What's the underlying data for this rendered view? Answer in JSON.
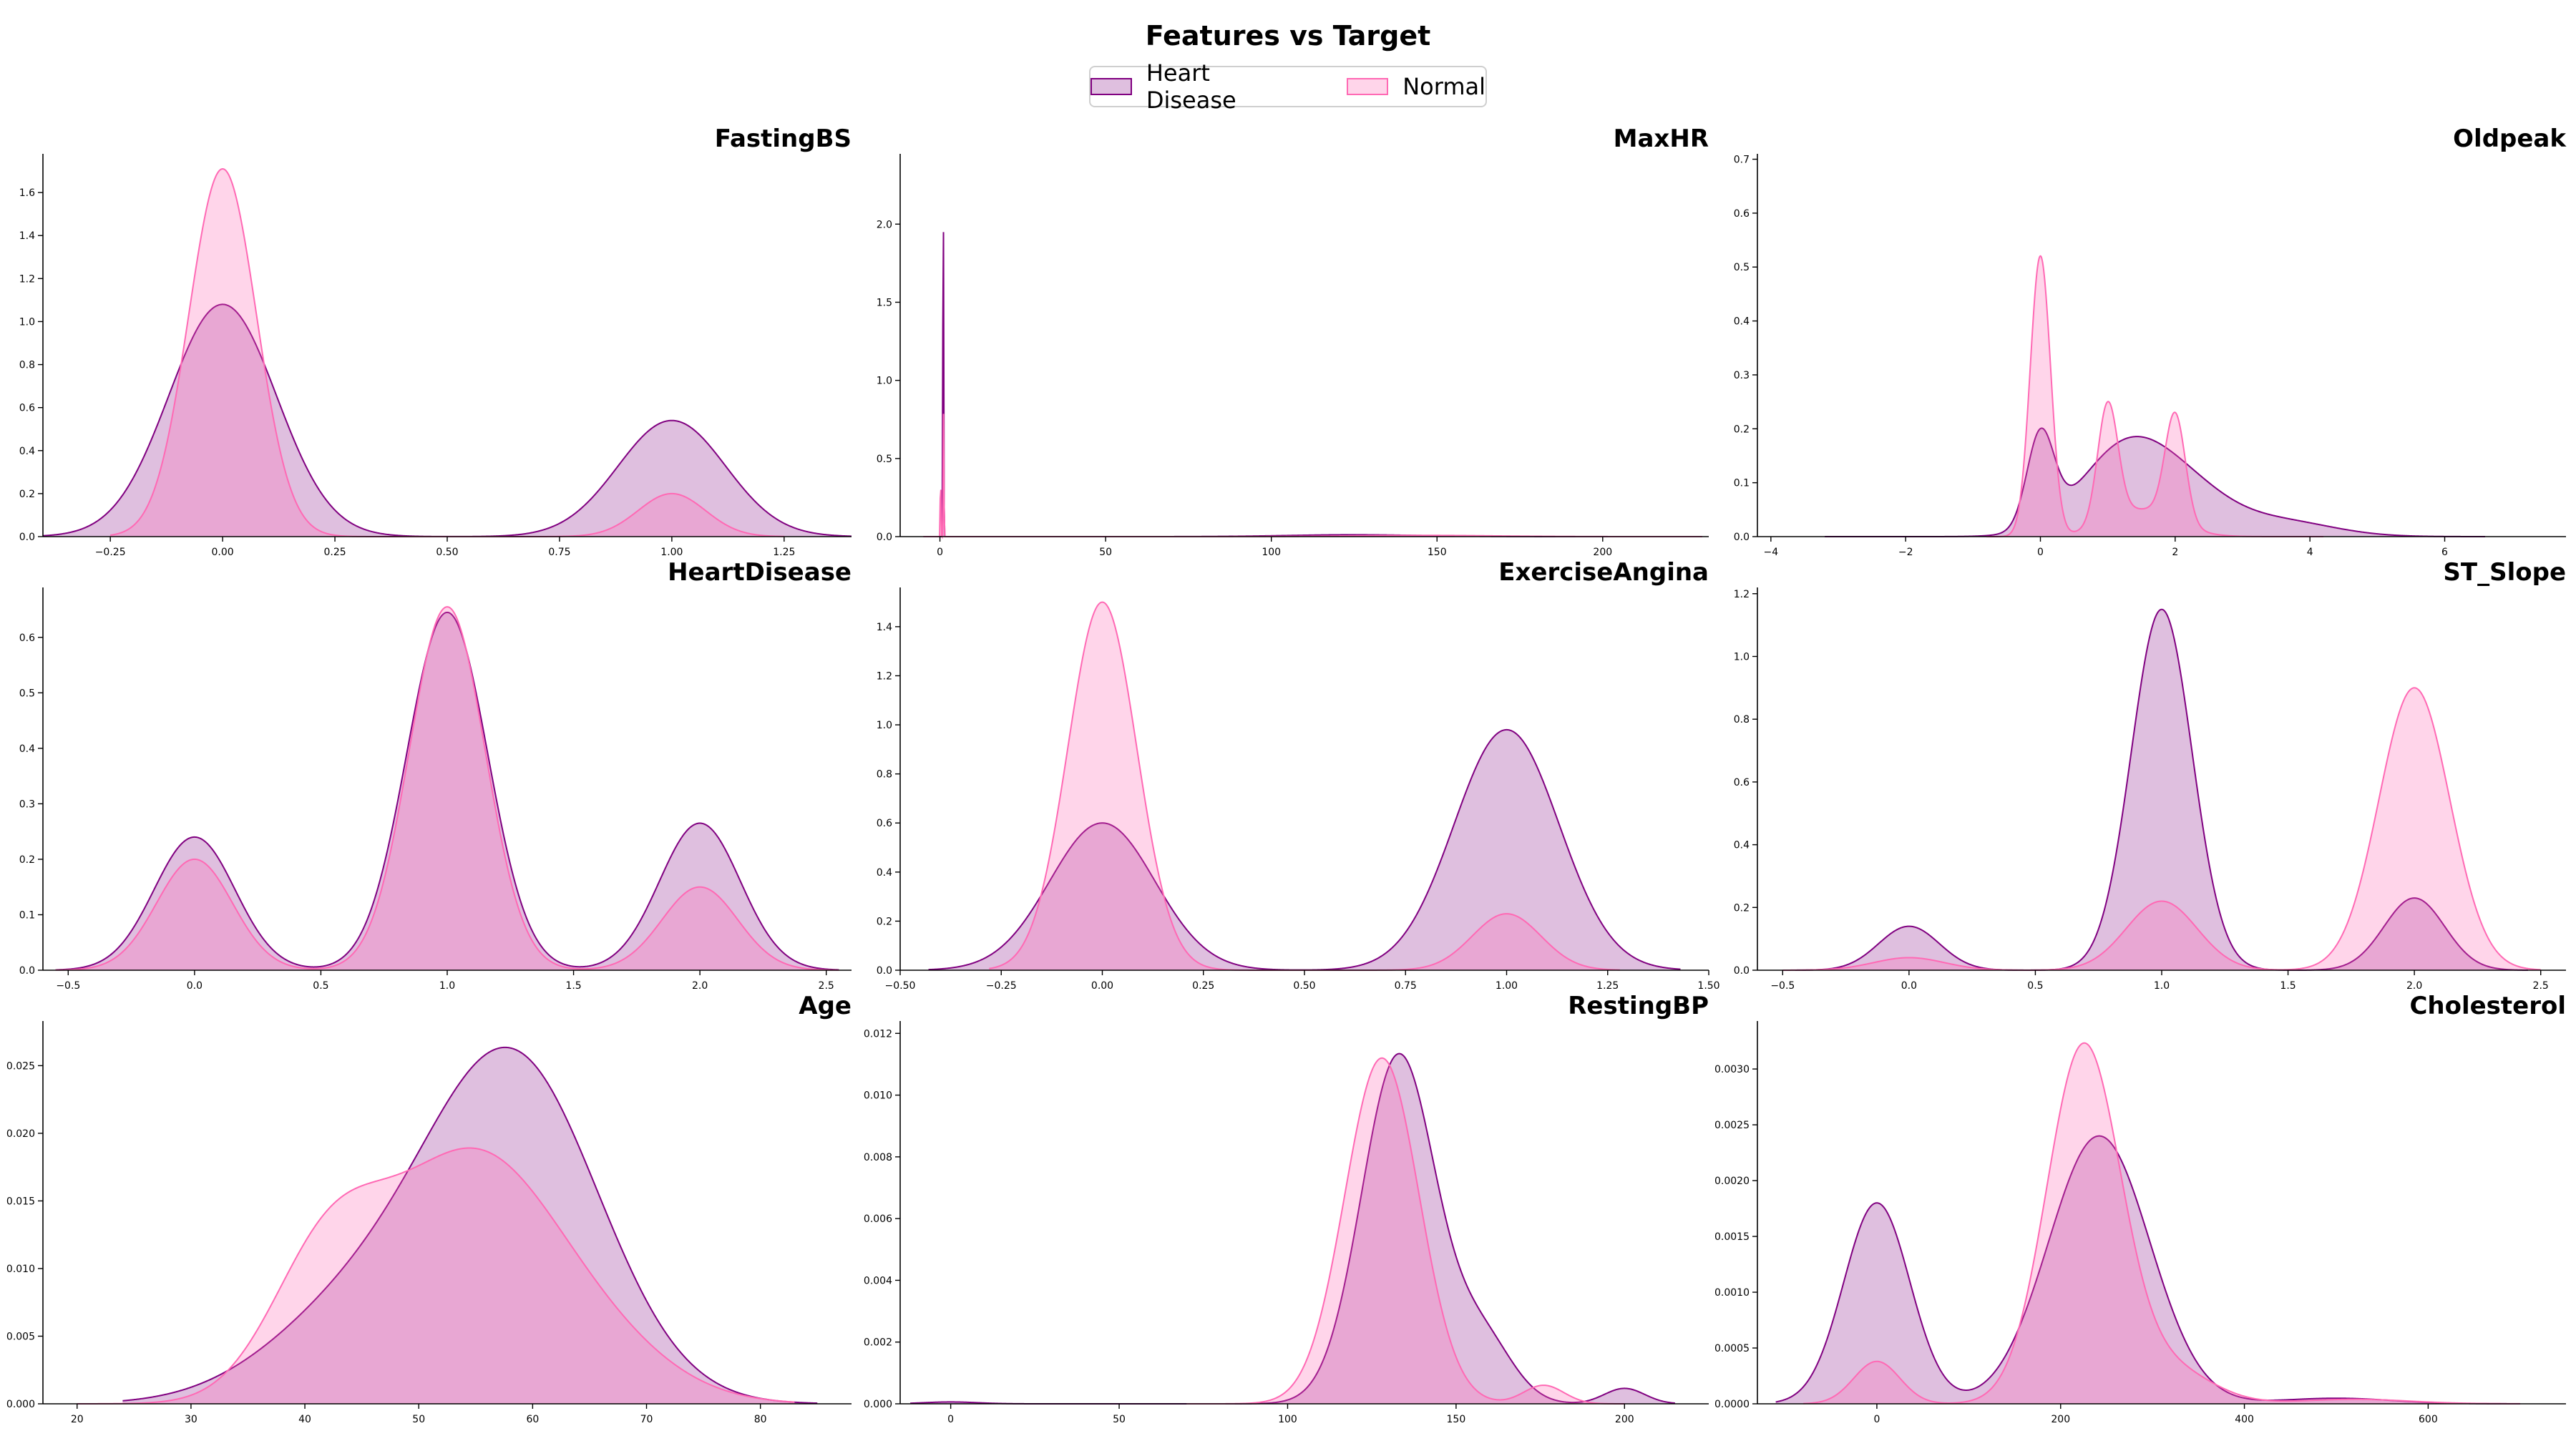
{
  "figure_title": "Features vs Target",
  "legend": {
    "items": [
      "Heart Disease",
      "Normal"
    ]
  },
  "colors": {
    "heart_disease_line": "#800080",
    "heart_disease_fill": "#800080",
    "normal_line": "#ff69b4",
    "normal_fill": "#ff69b4"
  },
  "chart_data": [
    {
      "type": "area",
      "title": "FastingBS",
      "xlim": [
        -0.4,
        1.4
      ],
      "ylim": [
        0,
        1.78
      ],
      "xticks": [
        {
          "v": -0.25,
          "l": "−0.25"
        },
        {
          "v": 0,
          "l": "0.00"
        },
        {
          "v": 0.25,
          "l": "0.25"
        },
        {
          "v": 0.5,
          "l": "0.50"
        },
        {
          "v": 0.75,
          "l": "0.75"
        },
        {
          "v": 1,
          "l": "1.00"
        },
        {
          "v": 1.25,
          "l": "1.25"
        }
      ],
      "yticks": [
        {
          "v": 0,
          "l": "0.0"
        },
        {
          "v": 0.2,
          "l": "0.2"
        },
        {
          "v": 0.4,
          "l": "0.4"
        },
        {
          "v": 0.6,
          "l": "0.6"
        },
        {
          "v": 0.8,
          "l": "0.8"
        },
        {
          "v": 1.0,
          "l": "1.0"
        },
        {
          "v": 1.2,
          "l": "1.2"
        },
        {
          "v": 1.4,
          "l": "1.4"
        },
        {
          "v": 1.6,
          "l": "1.6"
        }
      ],
      "series": [
        {
          "name": "Heart Disease",
          "range": [
            -0.4,
            1.4
          ],
          "peaks": [
            {
              "mu": 0,
              "sigma": 0.12,
              "h": 1.08
            },
            {
              "mu": 1,
              "sigma": 0.12,
              "h": 0.54
            }
          ]
        },
        {
          "name": "Normal",
          "range": [
            -0.25,
            1.25
          ],
          "peaks": [
            {
              "mu": 0,
              "sigma": 0.075,
              "h": 1.71
            },
            {
              "mu": 1,
              "sigma": 0.075,
              "h": 0.2
            }
          ]
        }
      ]
    },
    {
      "type": "area",
      "title": "MaxHR",
      "xlim": [
        -12,
        232
      ],
      "ylim": [
        0,
        2.45
      ],
      "xticks": [
        {
          "v": 0,
          "l": "0"
        },
        {
          "v": 50,
          "l": "50"
        },
        {
          "v": 100,
          "l": "100"
        },
        {
          "v": 150,
          "l": "150"
        },
        {
          "v": 200,
          "l": "200"
        }
      ],
      "yticks": [
        {
          "v": 0,
          "l": "0.0"
        },
        {
          "v": 0.5,
          "l": "0.5"
        },
        {
          "v": 1.0,
          "l": "1.0"
        },
        {
          "v": 1.5,
          "l": "1.5"
        },
        {
          "v": 2.0,
          "l": "2.0"
        }
      ],
      "series": [
        {
          "name": "Heart Disease",
          "range": [
            -5,
            230
          ],
          "peaks": [
            {
              "mu": 1,
              "sigma": 0.12,
              "h": 2.32
            },
            {
              "mu": 125,
              "sigma": 20,
              "h": 0.012
            }
          ]
        },
        {
          "name": "Normal",
          "range": [
            -5,
            230
          ],
          "peaks": [
            {
              "mu": 0.2,
              "sigma": 0.1,
              "h": 0.44
            },
            {
              "mu": 1.1,
              "sigma": 0.1,
              "h": 0.82
            },
            {
              "mu": 145,
              "sigma": 22,
              "h": 0.008
            }
          ]
        }
      ]
    },
    {
      "type": "area",
      "title": "Oldpeak",
      "xlim": [
        -4.2,
        7.8
      ],
      "ylim": [
        0,
        0.71
      ],
      "xticks": [
        {
          "v": -4,
          "l": "−4"
        },
        {
          "v": -2,
          "l": "−2"
        },
        {
          "v": 0,
          "l": "0"
        },
        {
          "v": 2,
          "l": "2"
        },
        {
          "v": 4,
          "l": "4"
        },
        {
          "v": 6,
          "l": "6"
        }
      ],
      "yticks": [
        {
          "v": 0,
          "l": "0.0"
        },
        {
          "v": 0.1,
          "l": "0.1"
        },
        {
          "v": 0.2,
          "l": "0.2"
        },
        {
          "v": 0.3,
          "l": "0.3"
        },
        {
          "v": 0.4,
          "l": "0.4"
        },
        {
          "v": 0.5,
          "l": "0.5"
        },
        {
          "v": 0.6,
          "l": "0.6"
        },
        {
          "v": 0.7,
          "l": "0.7"
        }
      ],
      "series": [
        {
          "name": "Heart Disease",
          "range": [
            -3.2,
            6.6
          ],
          "peaks": [
            {
              "mu": 0,
              "sigma": 0.2,
              "h": 0.17
            },
            {
              "mu": 1.3,
              "sigma": 0.7,
              "h": 0.17
            },
            {
              "mu": 2.3,
              "sigma": 0.6,
              "h": 0.05
            },
            {
              "mu": 3.5,
              "sigma": 0.8,
              "h": 0.03
            }
          ]
        },
        {
          "name": "Normal",
          "range": [
            -0.8,
            4.2
          ],
          "peaks": [
            {
              "mu": 0,
              "sigma": 0.15,
              "h": 0.52
            },
            {
              "mu": 1,
              "sigma": 0.15,
              "h": 0.22
            },
            {
              "mu": 2,
              "sigma": 0.15,
              "h": 0.2
            },
            {
              "mu": 1.5,
              "sigma": 0.5,
              "h": 0.05
            }
          ]
        }
      ]
    },
    {
      "type": "area",
      "title": "HeartDisease",
      "xlim": [
        -0.6,
        2.6
      ],
      "ylim": [
        0,
        0.69
      ],
      "xticks": [
        {
          "v": -0.5,
          "l": "−0.5"
        },
        {
          "v": 0,
          "l": "0.0"
        },
        {
          "v": 0.5,
          "l": "0.5"
        },
        {
          "v": 1.0,
          "l": "1.0"
        },
        {
          "v": 1.5,
          "l": "1.5"
        },
        {
          "v": 2.0,
          "l": "2.0"
        },
        {
          "v": 2.5,
          "l": "2.5"
        }
      ],
      "yticks": [
        {
          "v": 0,
          "l": "0.0"
        },
        {
          "v": 0.1,
          "l": "0.1"
        },
        {
          "v": 0.2,
          "l": "0.2"
        },
        {
          "v": 0.3,
          "l": "0.3"
        },
        {
          "v": 0.4,
          "l": "0.4"
        },
        {
          "v": 0.5,
          "l": "0.5"
        },
        {
          "v": 0.6,
          "l": "0.6"
        }
      ],
      "series": [
        {
          "name": "Heart Disease",
          "range": [
            -0.55,
            2.55
          ],
          "peaks": [
            {
              "mu": 0,
              "sigma": 0.16,
              "h": 0.24
            },
            {
              "mu": 1,
              "sigma": 0.16,
              "h": 0.645
            },
            {
              "mu": 2,
              "sigma": 0.16,
              "h": 0.265
            }
          ]
        },
        {
          "name": "Normal",
          "range": [
            -0.55,
            2.55
          ],
          "peaks": [
            {
              "mu": 0,
              "sigma": 0.15,
              "h": 0.2
            },
            {
              "mu": 1,
              "sigma": 0.15,
              "h": 0.655
            },
            {
              "mu": 2,
              "sigma": 0.15,
              "h": 0.15
            }
          ]
        }
      ]
    },
    {
      "type": "area",
      "title": "ExerciseAngina",
      "xlim": [
        -0.5,
        1.5
      ],
      "ylim": [
        0,
        1.56
      ],
      "xticks": [
        {
          "v": -0.5,
          "l": "−0.50"
        },
        {
          "v": -0.25,
          "l": "−0.25"
        },
        {
          "v": 0,
          "l": "0.00"
        },
        {
          "v": 0.25,
          "l": "0.25"
        },
        {
          "v": 0.5,
          "l": "0.50"
        },
        {
          "v": 0.75,
          "l": "0.75"
        },
        {
          "v": 1,
          "l": "1.00"
        },
        {
          "v": 1.25,
          "l": "1.25"
        },
        {
          "v": 1.5,
          "l": "1.50"
        }
      ],
      "yticks": [
        {
          "v": 0,
          "l": "0.0"
        },
        {
          "v": 0.2,
          "l": "0.2"
        },
        {
          "v": 0.4,
          "l": "0.4"
        },
        {
          "v": 0.6,
          "l": "0.6"
        },
        {
          "v": 0.8,
          "l": "0.8"
        },
        {
          "v": 1.0,
          "l": "1.0"
        },
        {
          "v": 1.2,
          "l": "1.2"
        },
        {
          "v": 1.4,
          "l": "1.4"
        }
      ],
      "series": [
        {
          "name": "Heart Disease",
          "range": [
            -0.43,
            1.43
          ],
          "peaks": [
            {
              "mu": 0,
              "sigma": 0.13,
              "h": 0.6
            },
            {
              "mu": 1,
              "sigma": 0.13,
              "h": 0.98
            }
          ]
        },
        {
          "name": "Normal",
          "range": [
            -0.28,
            1.28
          ],
          "peaks": [
            {
              "mu": 0,
              "sigma": 0.085,
              "h": 1.5
            },
            {
              "mu": 1,
              "sigma": 0.085,
              "h": 0.23
            }
          ]
        }
      ]
    },
    {
      "type": "area",
      "title": "ST_Slope",
      "xlim": [
        -0.6,
        2.6
      ],
      "ylim": [
        0,
        1.22
      ],
      "xticks": [
        {
          "v": -0.5,
          "l": "−0.5"
        },
        {
          "v": 0,
          "l": "0.0"
        },
        {
          "v": 0.5,
          "l": "0.5"
        },
        {
          "v": 1.0,
          "l": "1.0"
        },
        {
          "v": 1.5,
          "l": "1.5"
        },
        {
          "v": 2.0,
          "l": "2.0"
        },
        {
          "v": 2.5,
          "l": "2.5"
        }
      ],
      "yticks": [
        {
          "v": 0,
          "l": "0.0"
        },
        {
          "v": 0.2,
          "l": "0.2"
        },
        {
          "v": 0.4,
          "l": "0.4"
        },
        {
          "v": 0.6,
          "l": "0.6"
        },
        {
          "v": 0.8,
          "l": "0.8"
        },
        {
          "v": 1.0,
          "l": "1.0"
        },
        {
          "v": 1.2,
          "l": "1.2"
        }
      ],
      "series": [
        {
          "name": "Heart Disease",
          "range": [
            -0.45,
            2.45
          ],
          "peaks": [
            {
              "mu": 0,
              "sigma": 0.12,
              "h": 0.14
            },
            {
              "mu": 1,
              "sigma": 0.12,
              "h": 1.15
            },
            {
              "mu": 2,
              "sigma": 0.12,
              "h": 0.23
            }
          ]
        },
        {
          "name": "Normal",
          "range": [
            -0.5,
            2.5
          ],
          "peaks": [
            {
              "mu": 0,
              "sigma": 0.14,
              "h": 0.04
            },
            {
              "mu": 1,
              "sigma": 0.14,
              "h": 0.22
            },
            {
              "mu": 2,
              "sigma": 0.14,
              "h": 0.9
            }
          ]
        }
      ]
    },
    {
      "type": "area",
      "title": "Age",
      "xlim": [
        17,
        88
      ],
      "ylim": [
        0,
        0.0283
      ],
      "xticks": [
        {
          "v": 20,
          "l": "20"
        },
        {
          "v": 30,
          "l": "30"
        },
        {
          "v": 40,
          "l": "40"
        },
        {
          "v": 50,
          "l": "50"
        },
        {
          "v": 60,
          "l": "60"
        },
        {
          "v": 70,
          "l": "70"
        },
        {
          "v": 80,
          "l": "80"
        }
      ],
      "yticks": [
        {
          "v": 0,
          "l": "0.000"
        },
        {
          "v": 0.005,
          "l": "0.005"
        },
        {
          "v": 0.01,
          "l": "0.010"
        },
        {
          "v": 0.015,
          "l": "0.015"
        },
        {
          "v": 0.02,
          "l": "0.020"
        },
        {
          "v": 0.025,
          "l": "0.025"
        }
      ],
      "series": [
        {
          "name": "Heart Disease",
          "range": [
            24,
            85
          ],
          "peaks": [
            {
              "mu": 58.5,
              "sigma": 7.5,
              "h": 0.0245
            },
            {
              "mu": 45,
              "sigma": 8,
              "h": 0.007
            }
          ]
        },
        {
          "name": "Normal",
          "range": [
            20,
            83
          ],
          "peaks": [
            {
              "mu": 42,
              "sigma": 5,
              "h": 0.0105
            },
            {
              "mu": 54,
              "sigma": 7,
              "h": 0.0165
            },
            {
              "mu": 64,
              "sigma": 7,
              "h": 0.005
            }
          ]
        }
      ]
    },
    {
      "type": "area",
      "title": "RestingBP",
      "xlim": [
        -15,
        225
      ],
      "ylim": [
        0,
        0.0124
      ],
      "xticks": [
        {
          "v": 0,
          "l": "0"
        },
        {
          "v": 50,
          "l": "50"
        },
        {
          "v": 100,
          "l": "100"
        },
        {
          "v": 150,
          "l": "150"
        },
        {
          "v": 200,
          "l": "200"
        }
      ],
      "yticks": [
        {
          "v": 0,
          "l": "0.000"
        },
        {
          "v": 0.002,
          "l": "0.002"
        },
        {
          "v": 0.004,
          "l": "0.004"
        },
        {
          "v": 0.006,
          "l": "0.006"
        },
        {
          "v": 0.008,
          "l": "0.008"
        },
        {
          "v": 0.01,
          "l": "0.010"
        },
        {
          "v": 0.012,
          "l": "0.012"
        }
      ],
      "series": [
        {
          "name": "Heart Disease",
          "range": [
            -12,
            215
          ],
          "peaks": [
            {
              "mu": 0,
              "sigma": 8,
              "h": 6e-05
            },
            {
              "mu": 133,
              "sigma": 11,
              "h": 0.0113
            },
            {
              "mu": 158,
              "sigma": 9,
              "h": 0.002
            },
            {
              "mu": 200,
              "sigma": 6,
              "h": 0.0005
            }
          ]
        },
        {
          "name": "Normal",
          "range": [
            70,
            200
          ],
          "peaks": [
            {
              "mu": 128,
              "sigma": 11,
              "h": 0.0112
            },
            {
              "mu": 176,
              "sigma": 6,
              "h": 0.0006
            }
          ]
        }
      ]
    },
    {
      "type": "area",
      "title": "Cholesterol",
      "xlim": [
        -130,
        750
      ],
      "ylim": [
        0,
        0.00343
      ],
      "xticks": [
        {
          "v": 0,
          "l": "0"
        },
        {
          "v": 200,
          "l": "200"
        },
        {
          "v": 400,
          "l": "400"
        },
        {
          "v": 600,
          "l": "600"
        }
      ],
      "yticks": [
        {
          "v": 0,
          "l": "0.0000"
        },
        {
          "v": 0.0005,
          "l": "0.0005"
        },
        {
          "v": 0.001,
          "l": "0.0010"
        },
        {
          "v": 0.0015,
          "l": "0.0015"
        },
        {
          "v": 0.002,
          "l": "0.0020"
        },
        {
          "v": 0.0025,
          "l": "0.0025"
        },
        {
          "v": 0.003,
          "l": "0.0030"
        }
      ],
      "series": [
        {
          "name": "Heart Disease",
          "range": [
            -110,
            700
          ],
          "peaks": [
            {
              "mu": 0,
              "sigma": 36,
              "h": 0.0018
            },
            {
              "mu": 242,
              "sigma": 55,
              "h": 0.0024
            },
            {
              "mu": 500,
              "sigma": 60,
              "h": 5e-05
            }
          ]
        },
        {
          "name": "Normal",
          "range": [
            -80,
            700
          ],
          "peaks": [
            {
              "mu": 0,
              "sigma": 25,
              "h": 0.00038
            },
            {
              "mu": 225,
              "sigma": 40,
              "h": 0.0032
            },
            {
              "mu": 320,
              "sigma": 45,
              "h": 0.0003
            },
            {
              "mu": 520,
              "sigma": 60,
              "h": 4e-05
            }
          ]
        }
      ]
    }
  ]
}
